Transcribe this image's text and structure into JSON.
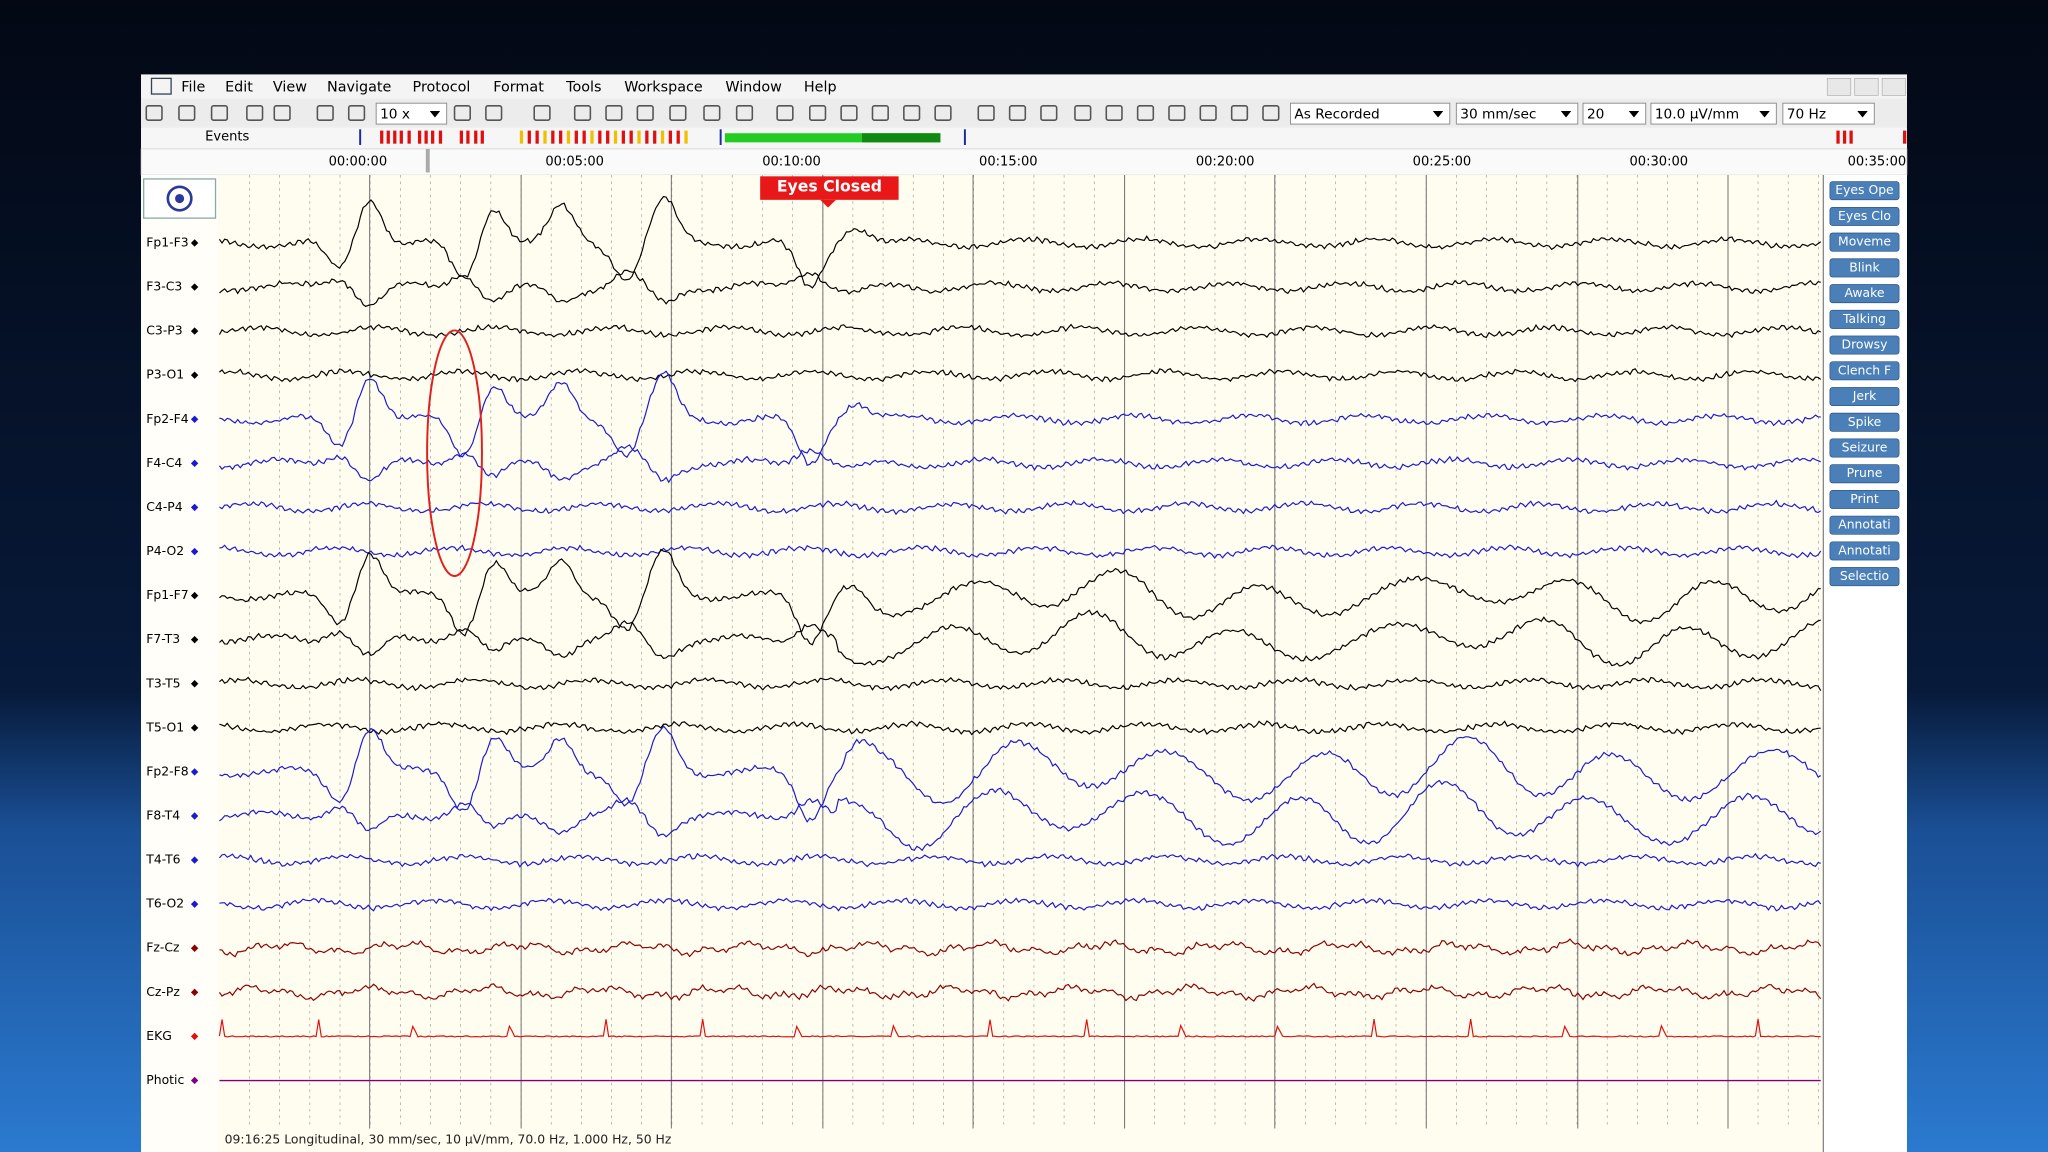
{
  "menu": [
    "File",
    "Edit",
    "View",
    "Navigate",
    "Protocol",
    "Format",
    "Tools",
    "Workspace",
    "Window",
    "Help"
  ],
  "toolbar": {
    "zoom": "10 x",
    "montage": "As Recorded",
    "speed": "30 mm/sec",
    "count": "20",
    "sensitivity": "10.0 µV/mm",
    "filter": "70 Hz"
  },
  "events_label": "Events",
  "timeline": [
    "00:00:00",
    "00:05:00",
    "00:10:00",
    "00:15:00",
    "00:20:00",
    "00:25:00",
    "00:30:00",
    "00:35:00"
  ],
  "annotation": "Eyes Closed",
  "channels": [
    {
      "label": "Fp1-F3",
      "color": "#000000"
    },
    {
      "label": "F3-C3",
      "color": "#000000"
    },
    {
      "label": "C3-P3",
      "color": "#000000"
    },
    {
      "label": "P3-O1",
      "color": "#000000"
    },
    {
      "label": "Fp2-F4",
      "color": "#1a1ad0"
    },
    {
      "label": "F4-C4",
      "color": "#1a1ad0"
    },
    {
      "label": "C4-P4",
      "color": "#1a1ad0"
    },
    {
      "label": "P4-O2",
      "color": "#1a1ad0"
    },
    {
      "label": "Fp1-F7",
      "color": "#000000"
    },
    {
      "label": "F7-T3",
      "color": "#000000"
    },
    {
      "label": "T3-T5",
      "color": "#000000"
    },
    {
      "label": "T5-O1",
      "color": "#000000"
    },
    {
      "label": "Fp2-F8",
      "color": "#1a1ad0"
    },
    {
      "label": "F8-T4",
      "color": "#1a1ad0"
    },
    {
      "label": "T4-T6",
      "color": "#1a1ad0"
    },
    {
      "label": "T6-O2",
      "color": "#1a1ad0"
    },
    {
      "label": "Fz-Cz",
      "color": "#8b0000"
    },
    {
      "label": "Cz-Pz",
      "color": "#8b0000"
    },
    {
      "label": "EKG",
      "color": "#e01010"
    },
    {
      "label": "Photic",
      "color": "#800080"
    }
  ],
  "event_buttons": [
    "Eyes Ope",
    "Eyes Clo",
    "Moveme",
    "Blink",
    "Awake",
    "Talking",
    "Drowsy",
    "Clench F",
    "Jerk",
    "Spike",
    "Seizure",
    "Prune",
    "Print",
    "Annotati",
    "Annotati",
    "Selectio"
  ],
  "status": "09:16:25 Longitudinal, 30 mm/sec, 10 µV/mm, 70.0 Hz, 1.000 Hz, 50 Hz"
}
